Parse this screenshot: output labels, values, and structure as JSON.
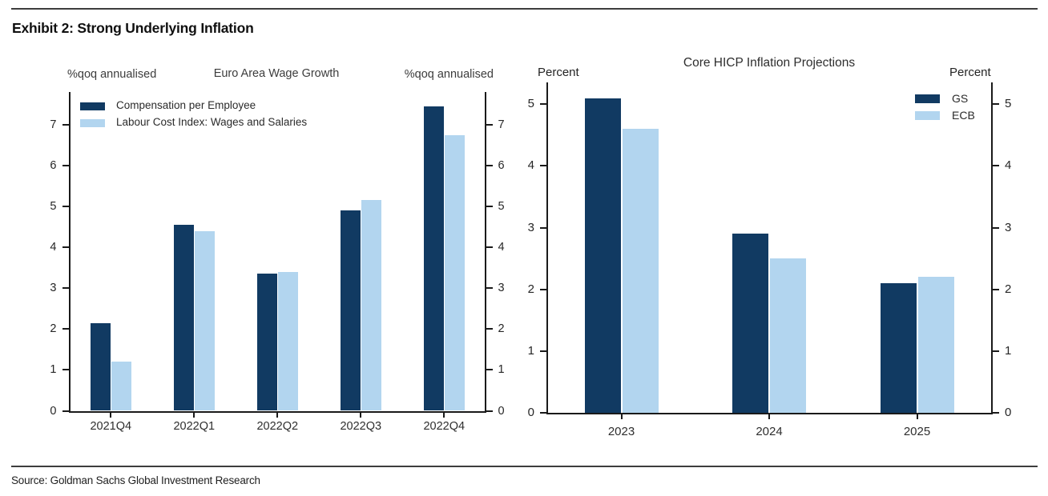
{
  "header": {
    "title": "Exhibit 2: Strong Underlying Inflation"
  },
  "footer": {
    "source": "Source: Goldman Sachs Global Investment Research"
  },
  "colors": {
    "dark": "#113a62",
    "light": "#b2d5ef"
  },
  "chart_data": [
    {
      "type": "bar",
      "title": "Euro Area Wage Growth",
      "left_axis_label": "%qoq annualised",
      "right_axis_label": "%qoq annualised",
      "categories": [
        "2021Q4",
        "2022Q1",
        "2022Q2",
        "2022Q3",
        "2022Q4"
      ],
      "series": [
        {
          "name": "Compensation per Employee",
          "color_key": "dark",
          "values": [
            2.15,
            4.55,
            3.35,
            4.9,
            7.45
          ]
        },
        {
          "name": "Labour Cost Index: Wages and Salaries",
          "color_key": "light",
          "values": [
            1.2,
            4.4,
            3.4,
            5.15,
            6.75
          ]
        }
      ],
      "ylim": [
        0,
        7.8
      ],
      "yticks": [
        0,
        1,
        2,
        3,
        4,
        5,
        6,
        7
      ],
      "dual_axis": true,
      "grid": false,
      "legend_position": "top-left"
    },
    {
      "type": "bar",
      "title": "Core HICP Inflation Projections",
      "left_axis_label": "Percent",
      "right_axis_label": "Percent",
      "categories": [
        "2023",
        "2024",
        "2025"
      ],
      "series": [
        {
          "name": "GS",
          "color_key": "dark",
          "values": [
            5.1,
            2.9,
            2.1
          ]
        },
        {
          "name": "ECB",
          "color_key": "light",
          "values": [
            4.6,
            2.5,
            2.2
          ]
        }
      ],
      "ylim": [
        0,
        5.36
      ],
      "yticks": [
        0,
        1,
        2,
        3,
        4,
        5
      ],
      "dual_axis": true,
      "grid": false,
      "legend_position": "top-right"
    }
  ]
}
